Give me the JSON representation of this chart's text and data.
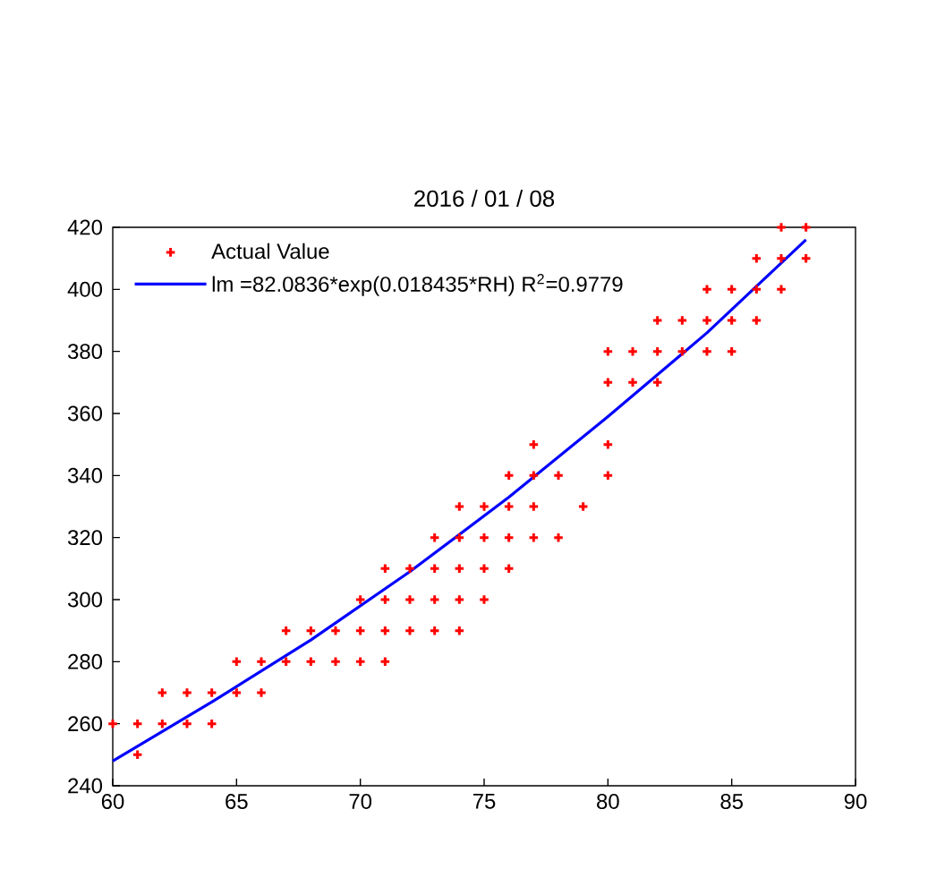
{
  "chart_data": {
    "type": "scatter",
    "title": "2016 / 01 / 08",
    "xlim": [
      60,
      90
    ],
    "ylim": [
      240,
      420
    ],
    "xticks": [
      60,
      65,
      70,
      75,
      80,
      85,
      90
    ],
    "yticks": [
      240,
      260,
      280,
      300,
      320,
      340,
      360,
      380,
      400,
      420
    ],
    "legend": "top left",
    "series": [
      {
        "name": "Actual Value",
        "color": "#ff0000",
        "marker": "cross",
        "x": [
          61,
          60,
          61,
          62,
          63,
          64,
          62,
          63,
          64,
          65,
          66,
          65,
          66,
          67,
          68,
          69,
          70,
          71,
          67,
          68,
          69,
          70,
          71,
          72,
          73,
          74,
          70,
          71,
          72,
          73,
          74,
          75,
          71,
          72,
          73,
          74,
          75,
          76,
          73,
          74,
          75,
          76,
          77,
          78,
          74,
          75,
          76,
          77,
          79,
          76,
          77,
          78,
          80,
          77,
          80,
          80,
          81,
          82,
          80,
          81,
          82,
          83,
          84,
          85,
          82,
          83,
          84,
          85,
          86,
          84,
          85,
          86,
          87,
          86,
          87,
          88,
          87,
          88
        ],
        "values": [
          250,
          260,
          260,
          260,
          260,
          260,
          270,
          270,
          270,
          270,
          270,
          280,
          280,
          280,
          280,
          280,
          280,
          280,
          290,
          290,
          290,
          290,
          290,
          290,
          290,
          290,
          300,
          300,
          300,
          300,
          300,
          300,
          310,
          310,
          310,
          310,
          310,
          310,
          320,
          320,
          320,
          320,
          320,
          320,
          330,
          330,
          330,
          330,
          330,
          340,
          340,
          340,
          340,
          350,
          350,
          370,
          370,
          370,
          380,
          380,
          380,
          380,
          380,
          380,
          390,
          390,
          390,
          390,
          390,
          400,
          400,
          400,
          400,
          410,
          410,
          410,
          420,
          420
        ]
      },
      {
        "name": "lm =82.0836*exp(0.018435*RH)  R$^{2}$=0.9779",
        "type": "line",
        "color": "#0000ff",
        "x": [
          60,
          64,
          68,
          72,
          76,
          80,
          84,
          88
        ],
        "values": [
          248,
          267,
          287,
          309,
          333,
          359,
          386,
          416
        ]
      }
    ]
  }
}
